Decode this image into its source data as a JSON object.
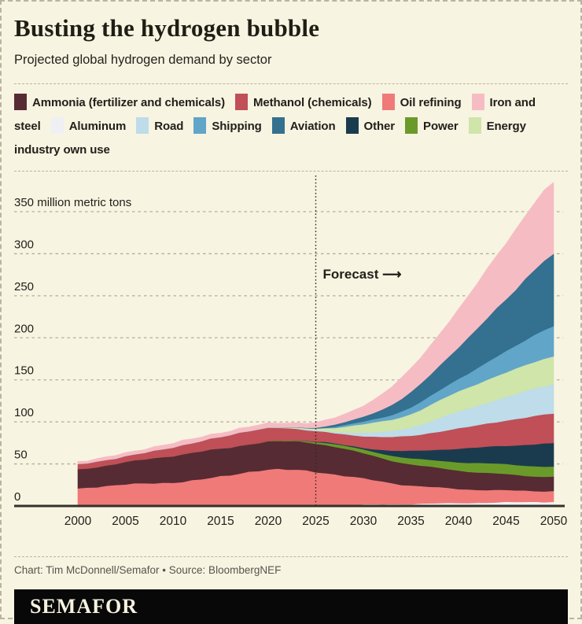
{
  "page": {
    "background": "#f8f4e2",
    "border_color": "#b9b4a0",
    "ink": "#21201a"
  },
  "header": {
    "title": "Busting the hydrogen bubble",
    "subtitle": "Projected global hydrogen demand by sector"
  },
  "legend": {
    "items": [
      {
        "label": "Ammonia (fertilizer and chemicals)",
        "series": "ammonia"
      },
      {
        "label": "Methanol (chemicals)",
        "series": "methanol"
      },
      {
        "label": "Oil refining",
        "series": "oil_refining"
      },
      {
        "label": "Iron and steel",
        "series": "iron_steel"
      },
      {
        "label": "Aluminum",
        "series": "aluminum"
      },
      {
        "label": "Road",
        "series": "road"
      },
      {
        "label": "Shipping",
        "series": "shipping"
      },
      {
        "label": "Aviation",
        "series": "aviation"
      },
      {
        "label": "Other",
        "series": "other"
      },
      {
        "label": "Power",
        "series": "power"
      },
      {
        "label": "Energy industry own use",
        "series": "energy_own_use"
      }
    ]
  },
  "chart_data": {
    "type": "area",
    "stacked": true,
    "unit": "million metric tons",
    "x_keyframes": [
      2000,
      2005,
      2010,
      2015,
      2020,
      2025,
      2030,
      2035,
      2040,
      2045,
      2050
    ],
    "series": [
      {
        "key": "aluminum",
        "label": "Aluminum",
        "color": "#eef0f4",
        "values": [
          0,
          0,
          0,
          0,
          0.3,
          0.8,
          1.5,
          2.5,
          3.5,
          4.5,
          5
        ]
      },
      {
        "key": "oil_refining",
        "label": "Oil refining",
        "color": "#ef7a78",
        "values": [
          21,
          26,
          28,
          35,
          43,
          40,
          31,
          22,
          17,
          14,
          13
        ]
      },
      {
        "key": "ammonia",
        "label": "Ammonia (fertilizer and chemicals)",
        "color": "#572b33",
        "values": [
          23,
          26,
          32,
          33,
          33,
          34,
          30,
          25,
          22,
          19,
          17
        ]
      },
      {
        "key": "power",
        "label": "Power",
        "color": "#6a9b2a",
        "values": [
          0,
          0,
          0,
          0,
          0.3,
          2,
          4.5,
          7,
          10,
          12,
          12
        ]
      },
      {
        "key": "other",
        "label": "Other",
        "color": "#1a3b4d",
        "values": [
          0,
          0,
          0,
          0,
          0,
          0.5,
          2,
          9,
          16,
          22,
          28
        ]
      },
      {
        "key": "methanol",
        "label": "Methanol (chemicals)",
        "color": "#c04f57",
        "values": [
          6,
          7,
          10,
          14,
          16,
          12,
          14,
          18,
          24,
          30,
          35
        ]
      },
      {
        "key": "road",
        "label": "Road",
        "color": "#bedce9",
        "values": [
          0,
          0,
          0,
          0,
          0.2,
          1,
          4,
          10,
          20,
          28,
          35
        ]
      },
      {
        "key": "energy_own_use",
        "label": "Energy industry own use",
        "color": "#cfe5a9",
        "values": [
          0,
          0,
          0,
          0,
          0.2,
          2,
          10,
          16,
          24,
          29,
          33
        ]
      },
      {
        "key": "shipping",
        "label": "Shipping",
        "color": "#61a5c8",
        "values": [
          0,
          0,
          0,
          0,
          0,
          0.5,
          3,
          8,
          15,
          25,
          36
        ]
      },
      {
        "key": "aviation",
        "label": "Aviation",
        "color": "#34708f",
        "values": [
          0,
          0,
          0,
          0,
          0,
          1,
          6,
          18,
          38,
          62,
          86
        ]
      },
      {
        "key": "iron_steel",
        "label": "Iron and steel",
        "color": "#f6bcc3",
        "values": [
          3,
          4,
          5,
          5,
          5,
          6,
          13,
          28,
          45,
          67,
          85
        ]
      }
    ],
    "y_axis": {
      "max": 350,
      "ticks": [
        {
          "v": 0,
          "label": "0"
        },
        {
          "v": 50,
          "label": "50"
        },
        {
          "v": 100,
          "label": "100"
        },
        {
          "v": 150,
          "label": "150"
        },
        {
          "v": 200,
          "label": "200"
        },
        {
          "v": 250,
          "label": "250"
        },
        {
          "v": 300,
          "label": "300"
        },
        {
          "v": 350,
          "label": "350 million metric tons"
        }
      ]
    },
    "x_axis": {
      "ticks": [
        2000,
        2005,
        2010,
        2015,
        2020,
        2025,
        2030,
        2035,
        2040,
        2045,
        2050
      ]
    },
    "forecast": {
      "year": 2025,
      "label": "Forecast",
      "arrow": "⟶"
    },
    "grid_color": "#b2ad9a",
    "axis_color": "#33322a",
    "label_color": "#22211a"
  },
  "footer": {
    "credit": "Chart: Tim McDonnell/Semafor • Source: BloombergNEF",
    "wordmark": "SEMAFOR"
  }
}
